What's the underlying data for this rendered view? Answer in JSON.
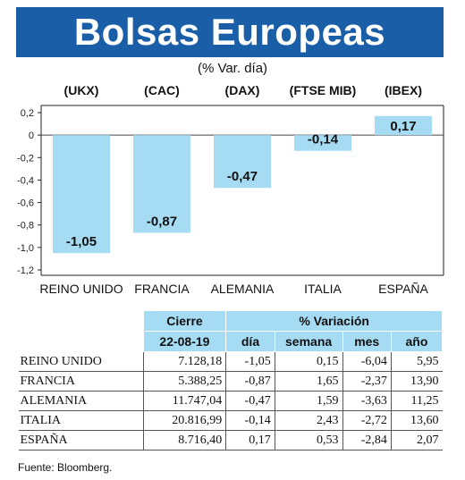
{
  "title": "Bolsas Europeas",
  "subtitle": "(% Var. día)",
  "chart_data": {
    "type": "bar",
    "codes": [
      "(UKX)",
      "(CAC)",
      "(DAX)",
      "(FTSE MIB)",
      "(IBEX)"
    ],
    "categories": [
      "REINO UNIDO",
      "FRANCIA",
      "ALEMANIA",
      "ITALIA",
      "ESPAÑA"
    ],
    "values": [
      -1.05,
      -0.87,
      -0.47,
      -0.14,
      0.17
    ],
    "value_labels": [
      "-1,05",
      "-0,87",
      "-0,47",
      "-0,14",
      "0,17"
    ],
    "ylim": [
      -1.2,
      0.2
    ],
    "yticks": [
      0.2,
      0,
      -0.2,
      -0.4,
      -0.6,
      -0.8,
      -1.0,
      -1.2
    ],
    "ytick_labels": [
      "0,2",
      "0",
      "-0,2",
      "-0,4",
      "-0,6",
      "-0,8",
      "-1,0",
      "-1,2"
    ],
    "bar_color": "#a5dcf4"
  },
  "table": {
    "header_cierre": "Cierre",
    "header_variacion": "% Variación",
    "header_date": "22-08-19",
    "columns": [
      "día",
      "semana",
      "mes",
      "año"
    ],
    "rows": [
      [
        "REINO UNIDO",
        "7.128,18",
        "-1,05",
        "0,15",
        "-6,04",
        "5,95"
      ],
      [
        "FRANCIA",
        "5.388,25",
        "-0,87",
        "1,65",
        "-2,37",
        "13,90"
      ],
      [
        "ALEMANIA",
        "11.747,04",
        "-0,47",
        "1,59",
        "-3,63",
        "11,25"
      ],
      [
        "ITALIA",
        "20.816,99",
        "-0,14",
        "2,43",
        "-2,72",
        "13,60"
      ],
      [
        "ESPAÑA",
        "8.716,40",
        "0,17",
        "0,53",
        "-2,84",
        "2,07"
      ]
    ]
  },
  "source": "Fuente: Bloomberg.",
  "colors": {
    "banner": "#1a5ea8",
    "accent": "#a5dcf4"
  }
}
